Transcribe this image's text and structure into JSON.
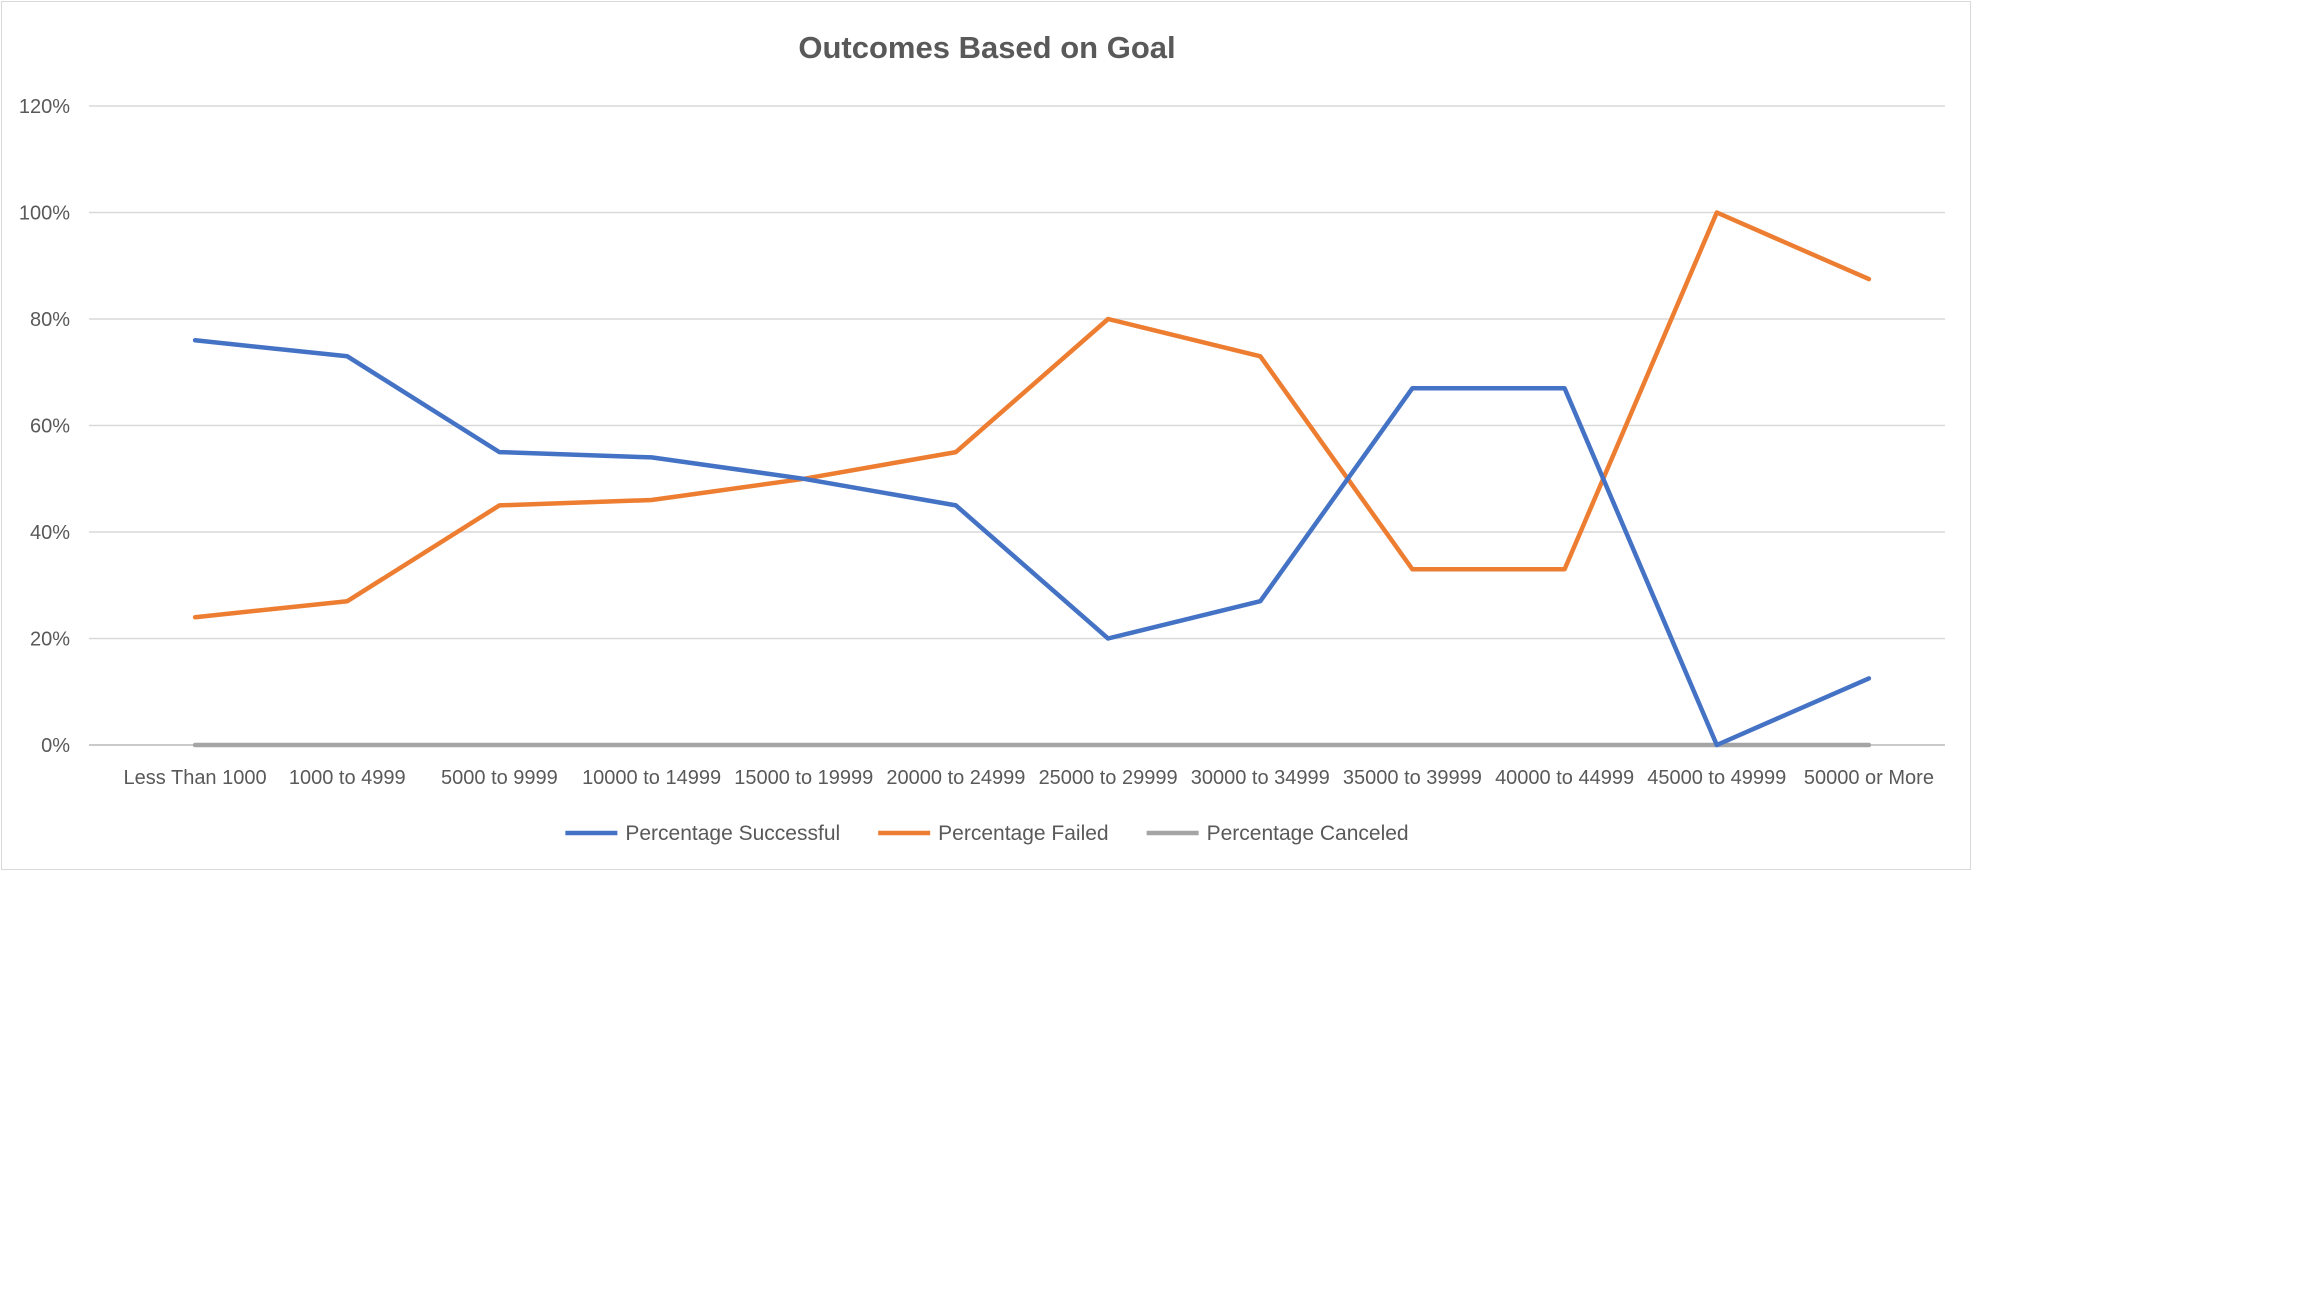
{
  "chart_data": {
    "type": "line",
    "title": "Outcomes Based on Goal",
    "xlabel": "",
    "ylabel": "",
    "categories": [
      "Less Than 1000",
      "1000 to 4999",
      "5000 to 9999",
      "10000 to 14999",
      "15000 to 19999",
      "20000 to 24999",
      "25000 to 29999",
      "30000 to 34999",
      "35000 to 39999",
      "40000 to 44999",
      "45000 to 49999",
      "50000 or More"
    ],
    "y_ticks": [
      "0%",
      "20%",
      "40%",
      "60%",
      "80%",
      "100%",
      "120%"
    ],
    "ylim": [
      0,
      120
    ],
    "y_unit": "%",
    "grid": true,
    "legend_position": "bottom",
    "series": [
      {
        "name": "Percentage Successful",
        "color": "#4472c4",
        "values": [
          76,
          73,
          55,
          54,
          50,
          45,
          20,
          27,
          67,
          67,
          0,
          12.5
        ]
      },
      {
        "name": "Percentage Failed",
        "color": "#ed7d31",
        "values": [
          24,
          27,
          45,
          46,
          50,
          55,
          80,
          73,
          33,
          33,
          100,
          87.5
        ]
      },
      {
        "name": "Percentage Canceled",
        "color": "#a5a5a5",
        "values": [
          0,
          0,
          0,
          0,
          0,
          0,
          0,
          0,
          0,
          0,
          0,
          0
        ]
      }
    ]
  }
}
